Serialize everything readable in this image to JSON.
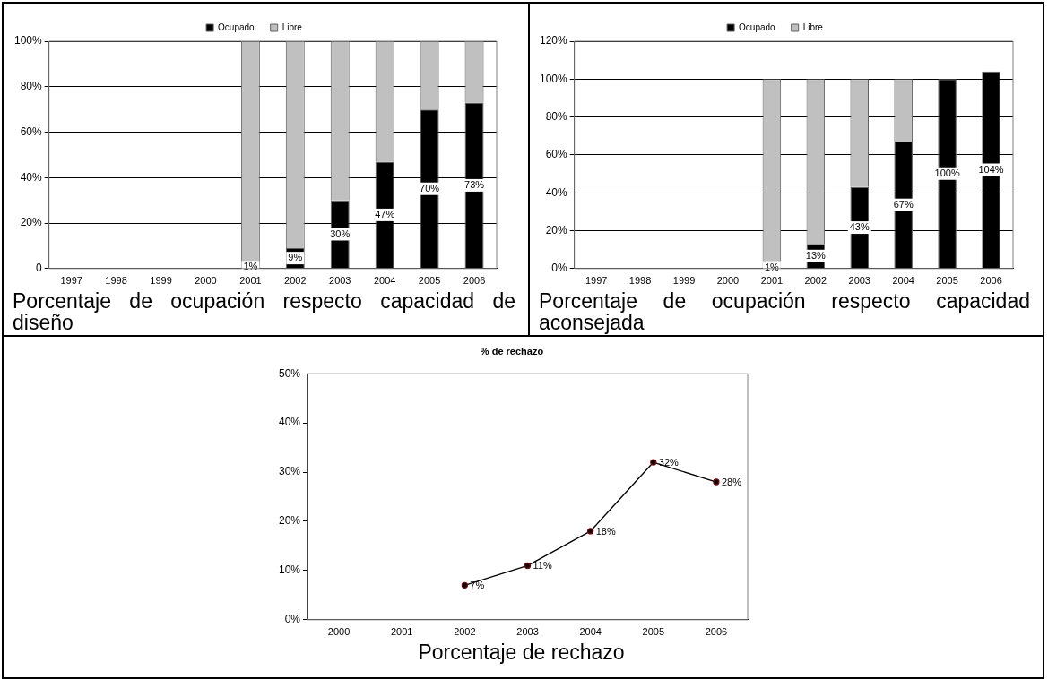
{
  "chart_data": [
    {
      "type": "bar",
      "stacked": true,
      "categories": [
        "1997",
        "1998",
        "1999",
        "2000",
        "2001",
        "2002",
        "2003",
        "2004",
        "2005",
        "2006"
      ],
      "series": [
        {
          "name": "Ocupado",
          "color": "#000000",
          "values": [
            0,
            0,
            0,
            0,
            1,
            9,
            30,
            47,
            70,
            73
          ],
          "value_labels": [
            null,
            null,
            null,
            null,
            "1%",
            "9%",
            "30%",
            "47%",
            "70%",
            "73%"
          ]
        },
        {
          "name": "Libre",
          "color": "#c0c0c0",
          "values": [
            0,
            0,
            0,
            0,
            99,
            91,
            70,
            53,
            30,
            27
          ]
        }
      ],
      "ylim": [
        0,
        100
      ],
      "yticks": [
        {
          "value": 0,
          "label": "0"
        },
        {
          "value": 20,
          "label": "20%"
        },
        {
          "value": 40,
          "label": "40%"
        },
        {
          "value": 60,
          "label": "60%"
        },
        {
          "value": 80,
          "label": "80%"
        },
        {
          "value": 100,
          "label": "100%"
        }
      ],
      "grid": "y",
      "legend": "top",
      "annotations": [
        "Porcentaje de ocupación respecto capacidad de diseño"
      ]
    },
    {
      "type": "bar",
      "stacked": true,
      "categories": [
        "1997",
        "1998",
        "1999",
        "2000",
        "2001",
        "2002",
        "2003",
        "2004",
        "2005",
        "2006"
      ],
      "series": [
        {
          "name": "Ocupado",
          "color": "#000000",
          "values": [
            0,
            0,
            0,
            0,
            1,
            13,
            43,
            67,
            100,
            104
          ],
          "value_labels": [
            null,
            null,
            null,
            null,
            "1%",
            "13%",
            "43%",
            "67%",
            "100%",
            "104%"
          ]
        },
        {
          "name": "Libre",
          "color": "#c0c0c0",
          "values": [
            0,
            0,
            0,
            0,
            99,
            87,
            57,
            33,
            0,
            0
          ]
        }
      ],
      "ylim": [
        0,
        120
      ],
      "yticks": [
        {
          "value": 0,
          "label": "0%"
        },
        {
          "value": 20,
          "label": "20%"
        },
        {
          "value": 40,
          "label": "40%"
        },
        {
          "value": 60,
          "label": "60%"
        },
        {
          "value": 80,
          "label": "80%"
        },
        {
          "value": 100,
          "label": "100%"
        },
        {
          "value": 120,
          "label": "120%"
        }
      ],
      "grid": "y",
      "legend": "top",
      "annotations": [
        "Porcentaje de ocupación respecto capacidad aconsejada"
      ]
    },
    {
      "type": "line",
      "title": "% de rechazo",
      "categories": [
        "2000",
        "2001",
        "2002",
        "2003",
        "2004",
        "2005",
        "2006"
      ],
      "series": [
        {
          "color": "#000000",
          "values": [
            null,
            null,
            7,
            11,
            18,
            32,
            28
          ],
          "value_labels": [
            null,
            null,
            "7%",
            "11%",
            "18%",
            "32%",
            "28%"
          ]
        }
      ],
      "ylim": [
        0,
        50
      ],
      "yticks": [
        {
          "value": 0,
          "label": "0%"
        },
        {
          "value": 10,
          "label": "10%"
        },
        {
          "value": 20,
          "label": "20%"
        },
        {
          "value": 30,
          "label": "30%"
        },
        {
          "value": 40,
          "label": "40%"
        },
        {
          "value": 50,
          "label": "50%"
        }
      ],
      "marker": "circle",
      "legend": false,
      "annotations": [
        "Porcentaje de rechazo"
      ]
    }
  ]
}
